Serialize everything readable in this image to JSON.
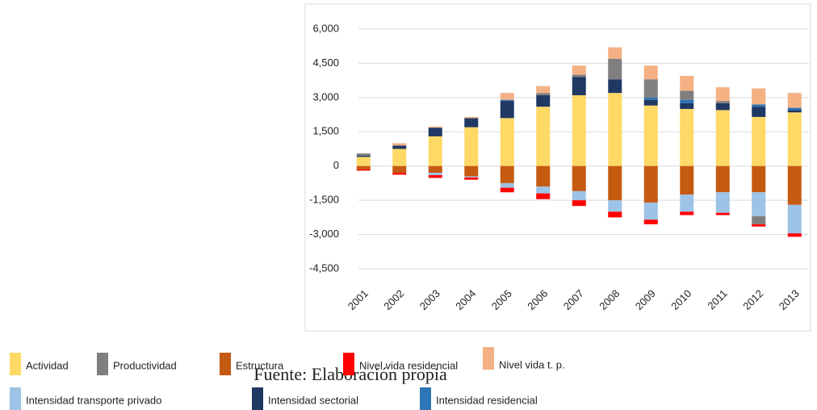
{
  "chart_data": {
    "type": "bar",
    "stacked": true,
    "source": "Fuente: Elaboración propia",
    "categories": [
      "2001",
      "2002",
      "2003",
      "2004",
      "2005",
      "2006",
      "2007",
      "2008",
      "2009",
      "2010",
      "2011",
      "2012",
      "2013"
    ],
    "ylim": [
      -4500,
      6000
    ],
    "yticks": [
      {
        "value": -4500,
        "label": "-4,500"
      },
      {
        "value": -3000,
        "label": "-3,000"
      },
      {
        "value": -1500,
        "label": "-1,500"
      },
      0,
      {
        "value": 1500,
        "label": "1,500"
      },
      {
        "value": 3000,
        "label": "3,000"
      },
      {
        "value": 4500,
        "label": "4,500"
      },
      {
        "value": 6000,
        "label": "6,000"
      }
    ],
    "grid": true,
    "series": [
      {
        "name": "Actividad",
        "color": "#FFD966",
        "values": [
          400,
          750,
          1300,
          1700,
          2100,
          2600,
          3100,
          3200,
          2650,
          2500,
          2450,
          2150,
          2350
        ]
      },
      {
        "name": "Productividad",
        "color": "#7F7F7F",
        "values": [
          100,
          0,
          0,
          0,
          0,
          100,
          100,
          900,
          800,
          400,
          100,
          -350,
          0
        ]
      },
      {
        "name": "Estructura",
        "color": "#C55A11",
        "values": [
          -150,
          -300,
          -300,
          -450,
          -750,
          -900,
          -1100,
          -1500,
          -1600,
          -1250,
          -1150,
          -1150,
          -1700
        ]
      },
      {
        "name": "Nivel vida residencial",
        "color": "#FF0000",
        "values": [
          -50,
          -80,
          -120,
          -100,
          -200,
          -250,
          -250,
          -250,
          -200,
          -150,
          -100,
          -100,
          -150
        ]
      },
      {
        "name": "Nivel vida t. p.",
        "color": "#F4B183",
        "values": [
          0,
          100,
          50,
          50,
          300,
          300,
          400,
          500,
          600,
          650,
          600,
          700,
          650
        ]
      },
      {
        "name": "Intensidad transporte privado",
        "color": "#9DC3E6",
        "values": [
          0,
          0,
          -100,
          -50,
          -200,
          -300,
          -400,
          -500,
          -750,
          -750,
          -900,
          -1050,
          -1250
        ]
      },
      {
        "name": "Intensidad sectorial",
        "color": "#203864",
        "values": [
          50,
          150,
          380,
          400,
          750,
          500,
          800,
          600,
          250,
          250,
          300,
          450,
          100
        ]
      },
      {
        "name": "Intensidad residencial",
        "color": "#2E75B6",
        "values": [
          0,
          0,
          0,
          0,
          50,
          0,
          0,
          0,
          100,
          150,
          0,
          100,
          100
        ]
      }
    ]
  }
}
